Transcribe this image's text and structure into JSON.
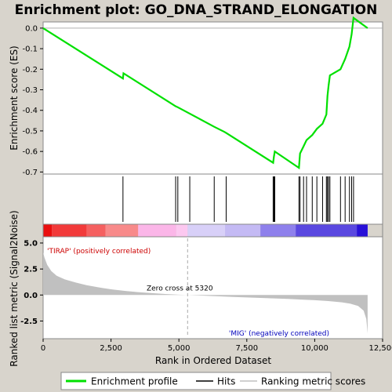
{
  "chart_data": {
    "type": "line",
    "title": "Enrichment plot: GO_DNA_STRAND_ELONGATION",
    "top_panel": {
      "ylabel": "Enrichment score (ES)",
      "ylim": [
        -0.71,
        0.03
      ],
      "yticks": [
        0.0,
        -0.1,
        -0.2,
        -0.3,
        -0.4,
        -0.5,
        -0.6,
        -0.7
      ],
      "ytick_labels": [
        "0.0",
        "-0.1",
        "-0.2",
        "-0.3",
        "-0.4",
        "-0.5",
        "-0.6",
        "-0.7"
      ],
      "series": [
        {
          "name": "Enrichment profile",
          "color": "#00e000",
          "x": [
            0,
            2940,
            2960,
            4880,
            4960,
            6300,
            6680,
            6740,
            8470,
            8500,
            8530,
            9420,
            9460,
            9590,
            9700,
            9910,
            10080,
            10290,
            10430,
            10470,
            10510,
            10560,
            10950,
            11120,
            11280,
            11360,
            11430,
            11950
          ],
          "y": [
            0.0,
            -0.245,
            -0.22,
            -0.38,
            -0.385,
            -0.48,
            -0.505,
            -0.51,
            -0.655,
            -0.625,
            -0.6,
            -0.68,
            -0.61,
            -0.575,
            -0.545,
            -0.52,
            -0.49,
            -0.465,
            -0.42,
            -0.33,
            -0.28,
            -0.23,
            -0.2,
            -0.15,
            -0.09,
            -0.03,
            0.05,
            0.0
          ]
        }
      ]
    },
    "hits": [
      2940,
      4880,
      4960,
      5400,
      6300,
      6740,
      8470,
      8500,
      8530,
      9420,
      9460,
      9590,
      9700,
      9910,
      10080,
      10290,
      10430,
      10470,
      10510,
      10560,
      10950,
      11120,
      11280,
      11360,
      11430
    ],
    "ranking_bar": {
      "colors": [
        {
          "from": 0,
          "to": 320,
          "color": "#ea0f0f"
        },
        {
          "from": 320,
          "to": 1600,
          "color": "#f23a3a"
        },
        {
          "from": 1600,
          "to": 2300,
          "color": "#f56060"
        },
        {
          "from": 2300,
          "to": 3500,
          "color": "#f88a8a"
        },
        {
          "from": 3500,
          "to": 4900,
          "color": "#fbb6e8"
        },
        {
          "from": 4900,
          "to": 5320,
          "color": "#fcc8f0"
        },
        {
          "from": 5320,
          "to": 6700,
          "color": "#d8d0f8"
        },
        {
          "from": 6700,
          "to": 8000,
          "color": "#c4baf4"
        },
        {
          "from": 8000,
          "to": 9300,
          "color": "#8e80ec"
        },
        {
          "from": 9300,
          "to": 11550,
          "color": "#5a48e0"
        },
        {
          "from": 11550,
          "to": 11950,
          "color": "#2810d8"
        }
      ]
    },
    "bottom_panel": {
      "ylabel": "Ranked list metric (Signal2Noise)",
      "xlabel": "Rank in Ordered Dataset",
      "ylim": [
        -4.2,
        5.6
      ],
      "yticks": [
        5.0,
        2.5,
        0.0,
        -2.5
      ],
      "ytick_labels": [
        "5.0",
        "2.5",
        "0.0",
        "-2.5"
      ],
      "xlim": [
        0,
        12500
      ],
      "xticks": [
        0,
        2500,
        5000,
        7500,
        10000,
        12500
      ],
      "xtick_labels": [
        "0",
        "2,500",
        "5,000",
        "7,500",
        "10,000",
        "12,500"
      ],
      "metric_x": [
        0,
        50,
        150,
        300,
        500,
        800,
        1200,
        1600,
        2000,
        2500,
        3000,
        3500,
        4000,
        4500,
        5000,
        5320,
        6000,
        7000,
        8000,
        9000,
        10000,
        10500,
        11000,
        11300,
        11600,
        11800,
        11900,
        11950
      ],
      "metric_y": [
        4.1,
        3.6,
        2.9,
        2.3,
        1.85,
        1.5,
        1.2,
        0.95,
        0.75,
        0.55,
        0.4,
        0.28,
        0.18,
        0.1,
        0.03,
        0.0,
        -0.07,
        -0.18,
        -0.28,
        -0.38,
        -0.5,
        -0.58,
        -0.7,
        -0.82,
        -1.05,
        -1.5,
        -2.3,
        -3.7
      ],
      "zero_cross_label": "Zero cross at 5320",
      "zero_cross_x": 5320,
      "pos_label": "'TIRAP' (positively correlated)",
      "neg_label": "'MIG' (negatively correlated)"
    },
    "legend": [
      {
        "label": "Enrichment profile",
        "color": "#00e000"
      },
      {
        "label": "Hits",
        "color": "#000000"
      },
      {
        "label": "Ranking metric scores",
        "color": "#c0c0c0"
      }
    ]
  }
}
